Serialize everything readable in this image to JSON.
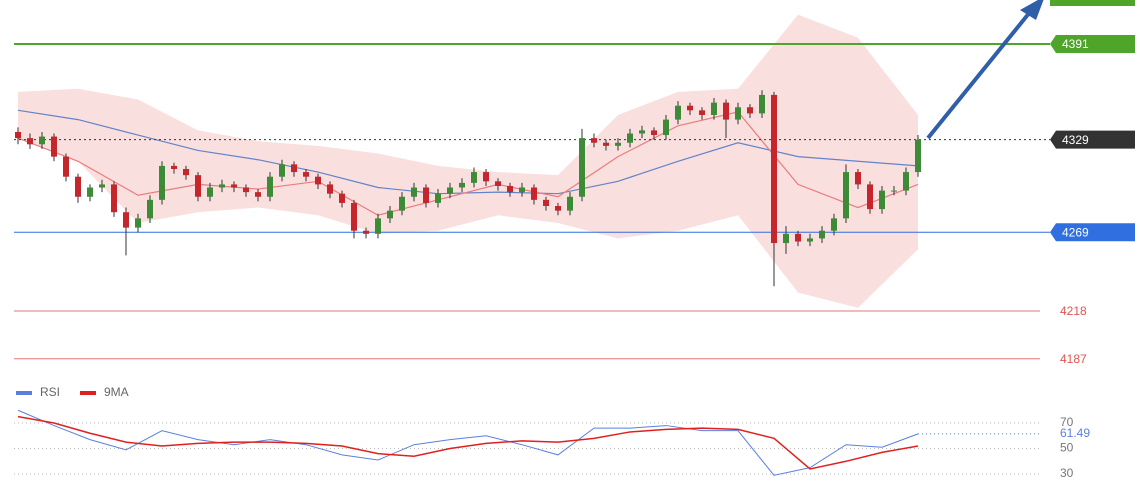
{
  "chart_data": {
    "type": "candlestick",
    "ylim": [
      4176.5,
      4419.5
    ],
    "candles": [
      [
        4334,
        4337,
        4326,
        4330
      ],
      [
        4330,
        4333,
        4323,
        4326
      ],
      [
        4326,
        4334,
        4323,
        4331
      ],
      [
        4331,
        4333,
        4315,
        4318
      ],
      [
        4318,
        4320,
        4302,
        4305
      ],
      [
        4305,
        4307,
        4288,
        4292
      ],
      [
        4292,
        4300,
        4289,
        4298
      ],
      [
        4298,
        4303,
        4295,
        4300
      ],
      [
        4300,
        4302,
        4279,
        4282
      ],
      [
        4282,
        4285,
        4254,
        4272
      ],
      [
        4272,
        4281,
        4269,
        4278
      ],
      [
        4278,
        4293,
        4275,
        4290
      ],
      [
        4290,
        4315,
        4287,
        4312
      ],
      [
        4312,
        4314,
        4307,
        4310
      ],
      [
        4310,
        4312,
        4303,
        4306
      ],
      [
        4306,
        4308,
        4289,
        4292
      ],
      [
        4292,
        4301,
        4289,
        4298
      ],
      [
        4298,
        4303,
        4295,
        4300
      ],
      [
        4300,
        4302,
        4295,
        4298
      ],
      [
        4298,
        4300,
        4292,
        4295
      ],
      [
        4295,
        4297,
        4289,
        4292
      ],
      [
        4292,
        4308,
        4289,
        4305
      ],
      [
        4305,
        4316,
        4302,
        4313
      ],
      [
        4313,
        4315,
        4305,
        4308
      ],
      [
        4308,
        4310,
        4302,
        4305
      ],
      [
        4305,
        4307,
        4297,
        4300
      ],
      [
        4300,
        4302,
        4291,
        4294
      ],
      [
        4294,
        4296,
        4285,
        4288
      ],
      [
        4288,
        4290,
        4265,
        4270
      ],
      [
        4270,
        4272,
        4265,
        4268
      ],
      [
        4268,
        4281,
        4265,
        4278
      ],
      [
        4278,
        4286,
        4275,
        4283
      ],
      [
        4283,
        4295,
        4280,
        4292
      ],
      [
        4292,
        4301,
        4289,
        4298
      ],
      [
        4298,
        4300,
        4285,
        4288
      ],
      [
        4288,
        4297,
        4285,
        4294
      ],
      [
        4294,
        4301,
        4291,
        4298
      ],
      [
        4298,
        4304,
        4295,
        4301
      ],
      [
        4301,
        4311,
        4298,
        4308
      ],
      [
        4308,
        4310,
        4299,
        4302
      ],
      [
        4302,
        4304,
        4296,
        4299
      ],
      [
        4299,
        4301,
        4292,
        4295
      ],
      [
        4295,
        4301,
        4292,
        4298
      ],
      [
        4298,
        4300,
        4287,
        4290
      ],
      [
        4290,
        4292,
        4283,
        4286
      ],
      [
        4286,
        4288,
        4280,
        4283
      ],
      [
        4283,
        4295,
        4280,
        4292
      ],
      [
        4292,
        4336,
        4289,
        4330
      ],
      [
        4330,
        4333,
        4324,
        4327
      ],
      [
        4327,
        4329,
        4322,
        4325
      ],
      [
        4325,
        4330,
        4322,
        4327
      ],
      [
        4327,
        4336,
        4324,
        4333
      ],
      [
        4333,
        4338,
        4330,
        4335
      ],
      [
        4335,
        4337,
        4329,
        4332
      ],
      [
        4332,
        4345,
        4329,
        4342
      ],
      [
        4342,
        4354,
        4339,
        4351
      ],
      [
        4351,
        4353,
        4345,
        4348
      ],
      [
        4348,
        4350,
        4342,
        4345
      ],
      [
        4345,
        4356,
        4342,
        4353
      ],
      [
        4353,
        4355,
        4330,
        4342
      ],
      [
        4342,
        4353,
        4339,
        4350
      ],
      [
        4350,
        4352,
        4343,
        4346
      ],
      [
        4346,
        4361,
        4343,
        4358
      ],
      [
        4358,
        4360,
        4234,
        4262
      ],
      [
        4262,
        4273,
        4255,
        4268
      ],
      [
        4268,
        4270,
        4260,
        4263
      ],
      [
        4263,
        4268,
        4260,
        4265
      ],
      [
        4265,
        4273,
        4262,
        4270
      ],
      [
        4270,
        4281,
        4267,
        4278
      ],
      [
        4278,
        4313,
        4275,
        4308
      ],
      [
        4308,
        4310,
        4297,
        4300
      ],
      [
        4300,
        4302,
        4281,
        4284
      ],
      [
        4284,
        4299,
        4281,
        4296
      ],
      [
        4296,
        4299,
        4293,
        4296
      ],
      [
        4296,
        4311,
        4293,
        4308
      ],
      [
        4308,
        4332,
        4305,
        4329
      ]
    ],
    "up_color": "#3d8b37",
    "down_color": "#c4262b",
    "bollinger": {
      "x": [
        0,
        5,
        10,
        15,
        20,
        25,
        30,
        35,
        40,
        45,
        50,
        55,
        60,
        65,
        70,
        75
      ],
      "upper": [
        4360,
        4362,
        4355,
        4335,
        4328,
        4325,
        4320,
        4312,
        4308,
        4306,
        4345,
        4360,
        4362,
        4410,
        4395,
        4345
      ],
      "middle": [
        4348,
        4342,
        4332,
        4322,
        4316,
        4308,
        4298,
        4294,
        4295,
        4294,
        4302,
        4315,
        4327,
        4318,
        4315,
        4312
      ],
      "lower": [
        4330,
        4315,
        4275,
        4282,
        4285,
        4280,
        4268,
        4270,
        4280,
        4275,
        4265,
        4270,
        4280,
        4230,
        4220,
        4258
      ],
      "fast": [
        4330,
        4315,
        4293,
        4300,
        4297,
        4302,
        4280,
        4290,
        4300,
        4292,
        4318,
        4338,
        4347,
        4300,
        4285,
        4300
      ],
      "band_color": "#f7c9c9",
      "middle_color": "#6283c8",
      "fast_color": "#ea7c7c"
    },
    "levels": [
      {
        "value": 4391,
        "color": "#4fa52a",
        "style": "solid",
        "tag": true
      },
      {
        "value": 4329,
        "color": "#333333",
        "style": "dotted",
        "tag": true
      },
      {
        "value": 4269,
        "color": "#2f6fe0",
        "style": "solid",
        "tag": true
      },
      {
        "value": 4218,
        "color": "#e05555",
        "style": "solid",
        "tag": false
      },
      {
        "value": 4187,
        "color": "#e05555",
        "style": "solid",
        "tag": false
      }
    ],
    "rsi_panel": {
      "ylim": [
        17.5,
        80.2
      ],
      "yticks": [
        70,
        50,
        30
      ],
      "x": [
        0,
        3,
        6,
        9,
        12,
        15,
        18,
        21,
        24,
        27,
        30,
        33,
        36,
        39,
        42,
        45,
        48,
        51,
        54,
        57,
        60,
        63,
        66,
        69,
        72,
        75
      ],
      "series": [
        {
          "name": "RSI",
          "color": "#5b7fe0",
          "values": [
            80,
            68,
            57,
            49,
            64,
            57,
            53,
            57,
            53,
            45,
            41,
            53,
            57,
            60,
            53,
            45,
            66,
            66,
            68,
            64,
            64,
            29,
            35,
            53,
            51,
            61.49
          ]
        },
        {
          "name": "9MA",
          "color": "#e0201e",
          "values": [
            75,
            70,
            62,
            55,
            52,
            54,
            55,
            55,
            54,
            52,
            46,
            44,
            50,
            54,
            56,
            55,
            58,
            63,
            65,
            66,
            65,
            58,
            34,
            40,
            47,
            52
          ]
        }
      ]
    }
  }
}
